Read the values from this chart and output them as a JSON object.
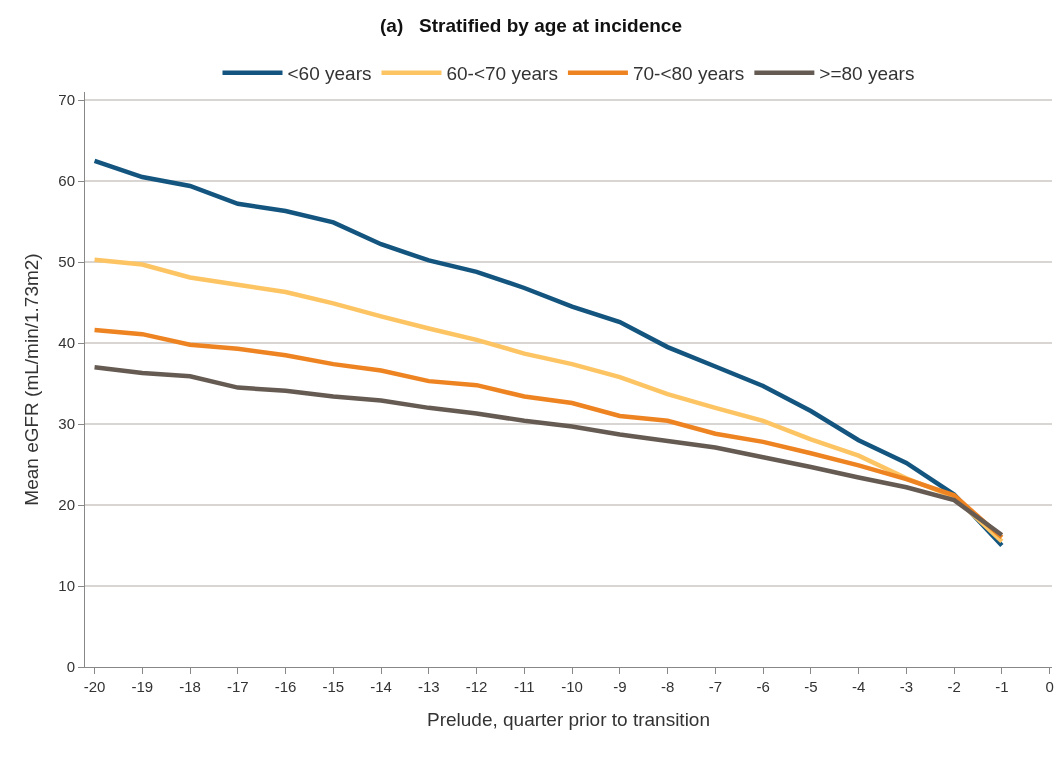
{
  "chart_data": {
    "type": "line",
    "title": "(a)   Stratified by age at incidence",
    "xlabel": "Prelude, quarter prior to transition",
    "ylabel": "Mean eGFR (mL/min/1.73m2)",
    "x": [
      -20,
      -19,
      -18,
      -17,
      -16,
      -15,
      -14,
      -13,
      -12,
      -11,
      -10,
      -9,
      -8,
      -7,
      -6,
      -5,
      -4,
      -3,
      -2,
      -1
    ],
    "series": [
      {
        "name": "<60 years",
        "color": "#13557f",
        "values": [
          62.5,
          60.5,
          59.4,
          57.2,
          56.3,
          54.9,
          52.2,
          50.2,
          48.8,
          46.8,
          44.5,
          42.6,
          39.5,
          37.1,
          34.7,
          31.6,
          28.0,
          25.2,
          21.3,
          15.0
        ]
      },
      {
        "name": "60-<70 years",
        "color": "#fdc463",
        "values": [
          50.3,
          49.7,
          48.1,
          47.2,
          46.3,
          44.9,
          43.3,
          41.8,
          40.4,
          38.7,
          37.4,
          35.8,
          33.7,
          32.0,
          30.4,
          28.1,
          26.1,
          23.3,
          21.0,
          15.5
        ]
      },
      {
        "name": "70-<80 years",
        "color": "#ee8322",
        "values": [
          41.6,
          41.1,
          39.8,
          39.3,
          38.5,
          37.4,
          36.6,
          35.3,
          34.8,
          33.4,
          32.6,
          31.0,
          30.4,
          28.8,
          27.8,
          26.4,
          24.9,
          23.2,
          21.2,
          16.0
        ]
      },
      {
        "name": ">=80 years",
        "color": "#665b53",
        "values": [
          37.0,
          36.3,
          35.9,
          34.5,
          34.1,
          33.4,
          32.9,
          32.0,
          31.3,
          30.4,
          29.7,
          28.7,
          27.9,
          27.1,
          25.9,
          24.7,
          23.4,
          22.2,
          20.6,
          16.3
        ]
      }
    ],
    "xlim": [
      -20.2,
      0.05
    ],
    "xticks": [
      -20,
      -19,
      -18,
      -17,
      -16,
      -15,
      -14,
      -13,
      -12,
      -11,
      -10,
      -9,
      -8,
      -7,
      -6,
      -5,
      -4,
      -3,
      -2,
      -1,
      0
    ],
    "ylim": [
      0,
      71
    ],
    "yticks": [
      0,
      10,
      20,
      30,
      40,
      50,
      60,
      70
    ],
    "grid": "y",
    "legend": "top",
    "marker": "none",
    "line_style": "solid"
  }
}
